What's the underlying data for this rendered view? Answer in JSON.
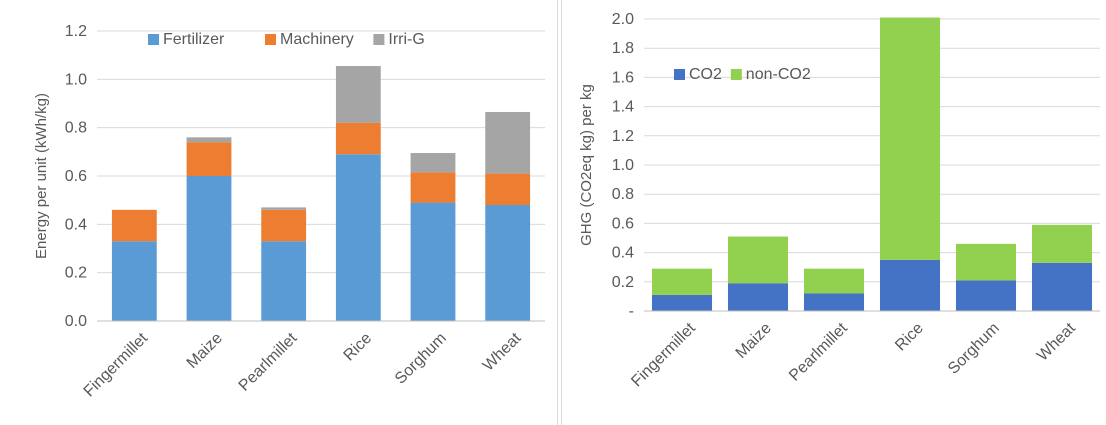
{
  "chart_data": [
    {
      "type": "bar",
      "stacked": true,
      "categories": [
        "Fingermillet",
        "Maize",
        "Pearlmillet",
        "Rice",
        "Sorghum",
        "Wheat"
      ],
      "series": [
        {
          "name": "Fertilizer",
          "values": [
            0.33,
            0.6,
            0.33,
            0.69,
            0.49,
            0.48
          ],
          "color": "#5b9bd5"
        },
        {
          "name": "Machinery",
          "values": [
            0.13,
            0.14,
            0.13,
            0.13,
            0.125,
            0.13
          ],
          "color": "#ed7d31"
        },
        {
          "name": "Irri-G",
          "values": [
            0.0,
            0.02,
            0.01,
            0.235,
            0.08,
            0.255
          ],
          "color": "#a5a5a5"
        }
      ],
      "title": "",
      "xlabel": "",
      "ylabel": "Energy per unit (kWh/kg)",
      "ylim": [
        0,
        1.2
      ],
      "yticks": [
        "0.0",
        "0.2",
        "0.4",
        "0.6",
        "0.8",
        "1.0",
        "1.2"
      ],
      "legend_position": "top",
      "grid": true
    },
    {
      "type": "bar",
      "stacked": true,
      "categories": [
        "Fingermillet",
        "Maize",
        "Pearlmillet",
        "Rice",
        "Sorghum",
        "Wheat"
      ],
      "series": [
        {
          "name": "CO2",
          "values": [
            0.11,
            0.19,
            0.12,
            0.35,
            0.21,
            0.33
          ],
          "color": "#4472c4"
        },
        {
          "name": "non-CO2",
          "values": [
            0.18,
            0.32,
            0.17,
            1.66,
            0.25,
            0.26
          ],
          "color": "#92d050"
        }
      ],
      "title": "",
      "xlabel": "",
      "ylabel": "GHG (CO2eq kg) per kg",
      "ylim": [
        0,
        2.0
      ],
      "yticks": [
        "-",
        "0.2",
        "0.4",
        "0.6",
        "0.8",
        "1.0",
        "1.2",
        "1.4",
        "1.6",
        "1.8",
        "2.0"
      ],
      "legend_position": "top-left",
      "grid": true
    }
  ]
}
